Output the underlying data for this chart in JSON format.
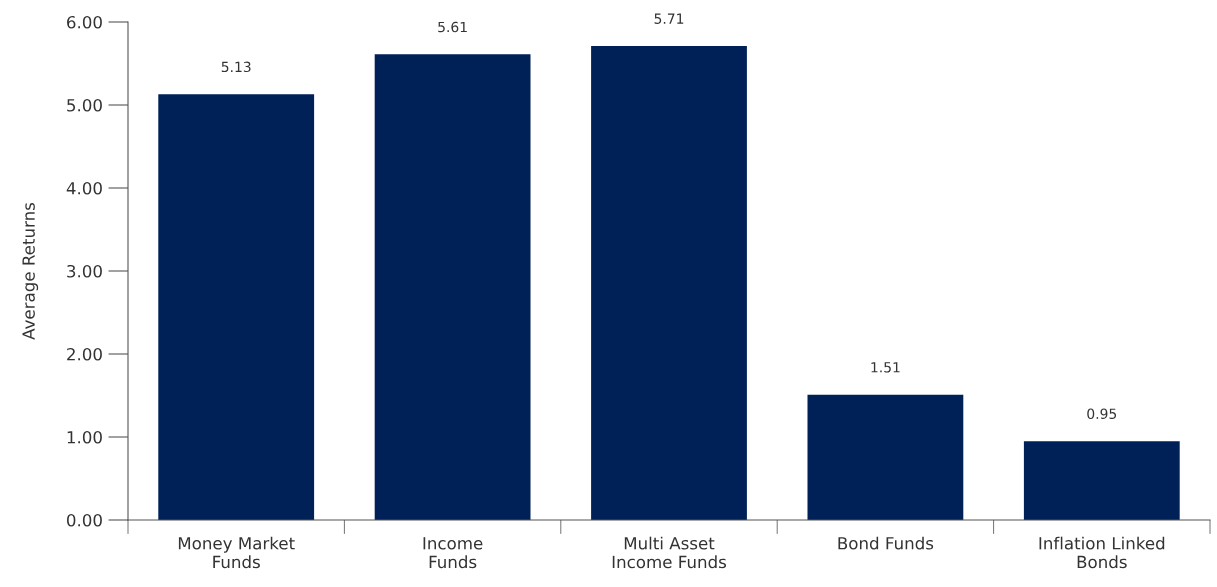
{
  "chart_data": {
    "type": "bar",
    "ylabel": "Average Returns",
    "categories": [
      "Money Market\nFunds",
      "Income\nFunds",
      "Multi Asset\nIncome Funds",
      "Bond Funds",
      "Inflation Linked\nBonds"
    ],
    "values": [
      5.13,
      5.61,
      5.71,
      1.51,
      0.95
    ],
    "color": "#002157",
    "ylim": [
      0,
      6
    ],
    "yticks": [
      {
        "value": 0,
        "label": "0.00"
      },
      {
        "value": 1,
        "label": "1.00"
      },
      {
        "value": 2,
        "label": "2.00"
      },
      {
        "value": 3,
        "label": "3.00"
      },
      {
        "value": 4,
        "label": "4.00"
      },
      {
        "value": 5,
        "label": "5.00"
      },
      {
        "value": 6,
        "label": "6.00"
      }
    ],
    "data_labels": true,
    "grid": false,
    "legend": false
  }
}
